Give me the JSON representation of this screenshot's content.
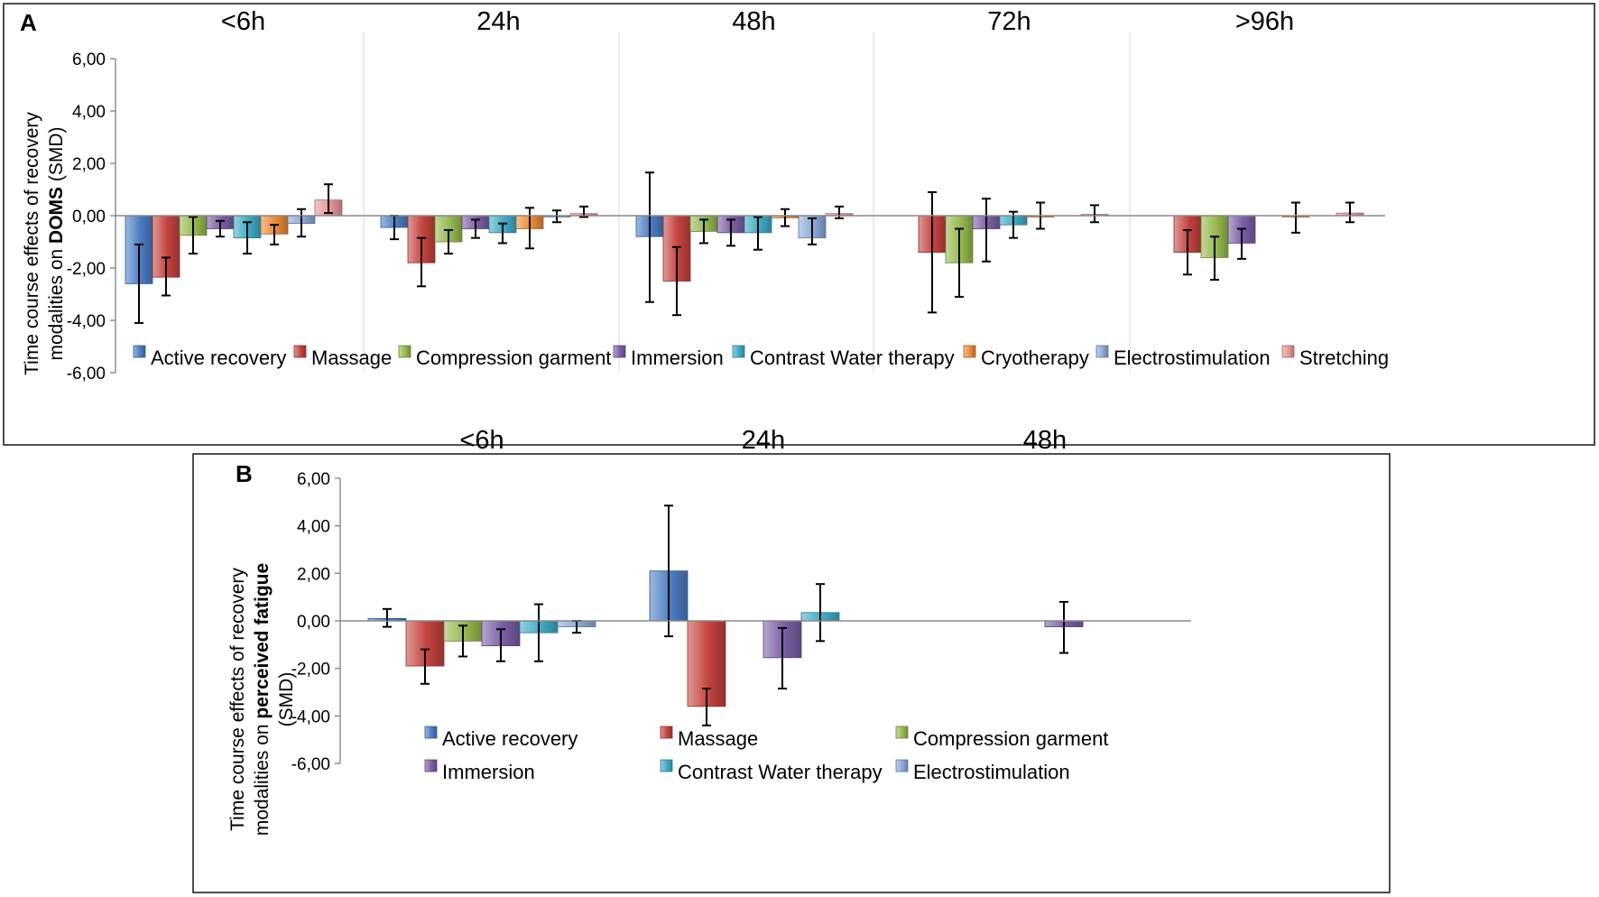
{
  "colors": {
    "Active recovery": "#4a7dc4",
    "Massage": "#c4433f",
    "Compression garment": "#96b94f",
    "Immersion": "#7b5ea5",
    "Contrast Water therapy": "#3eacc6",
    "Cryotherapy": "#eb8a36",
    "Electrostimulation": "#8ca9d8",
    "Stretching": "#e59795"
  },
  "chart_data": [
    {
      "type": "bar",
      "panel_label": "A",
      "ylabel_line1": "Time course effects of recovery",
      "ylabel_prefix": "modalities on ",
      "ylabel_bold": "DOMS",
      "ylabel_suffix": " (SMD)",
      "ylim": [
        -6,
        6
      ],
      "yticks": [
        "6,00",
        "4,00",
        "2,00",
        "0,00",
        "-2,00",
        "-4,00",
        "-6,00"
      ],
      "categories": [
        "<6h",
        "24h",
        "48h",
        "72h",
        ">96h"
      ],
      "series": [
        {
          "name": "Active recovery",
          "values": [
            -2.6,
            -0.45,
            -0.8,
            null,
            null
          ],
          "lo": [
            -4.1,
            -0.9,
            -3.3,
            null,
            null
          ],
          "hi": [
            -1.1,
            0.0,
            1.65,
            null,
            null
          ]
        },
        {
          "name": "Massage",
          "values": [
            -2.35,
            -1.8,
            -2.5,
            -1.4,
            -1.4
          ],
          "lo": [
            -3.05,
            -2.7,
            -3.8,
            -3.7,
            -2.25
          ],
          "hi": [
            -1.6,
            -0.85,
            -1.2,
            0.9,
            -0.55
          ]
        },
        {
          "name": "Compression garment",
          "values": [
            -0.75,
            -1.0,
            -0.6,
            -1.8,
            -1.6
          ],
          "lo": [
            -1.45,
            -1.45,
            -1.05,
            -3.1,
            -2.45
          ],
          "hi": [
            -0.05,
            -0.55,
            -0.15,
            -0.5,
            -0.8
          ]
        },
        {
          "name": "Immersion",
          "values": [
            -0.5,
            -0.5,
            -0.65,
            -0.5,
            -1.05
          ],
          "lo": [
            -0.8,
            -0.85,
            -1.15,
            -1.75,
            -1.65
          ],
          "hi": [
            -0.2,
            -0.15,
            -0.15,
            0.65,
            -0.5
          ]
        },
        {
          "name": "Contrast Water therapy",
          "values": [
            -0.85,
            -0.65,
            -0.65,
            -0.35,
            null
          ],
          "lo": [
            -1.45,
            -1.05,
            -1.3,
            -0.85,
            null
          ],
          "hi": [
            -0.25,
            -0.3,
            -0.05,
            0.15,
            null
          ]
        },
        {
          "name": "Cryotherapy",
          "values": [
            -0.7,
            -0.5,
            -0.08,
            0.0,
            -0.05
          ],
          "lo": [
            -1.1,
            -1.25,
            -0.4,
            -0.5,
            -0.65
          ],
          "hi": [
            -0.35,
            0.3,
            0.25,
            0.5,
            0.5
          ]
        },
        {
          "name": "Electrostimulation",
          "values": [
            -0.3,
            -0.05,
            -0.85,
            null,
            null
          ],
          "lo": [
            -0.8,
            -0.25,
            -1.1,
            null,
            null
          ],
          "hi": [
            0.25,
            0.2,
            -0.1,
            null,
            null
          ]
        },
        {
          "name": "Stretching",
          "values": [
            0.6,
            0.08,
            0.08,
            0.05,
            0.1
          ],
          "lo": [
            0.1,
            -0.05,
            -0.1,
            -0.25,
            -0.25
          ],
          "hi": [
            1.2,
            0.35,
            0.35,
            0.4,
            0.5
          ]
        }
      ]
    },
    {
      "type": "bar",
      "panel_label": "B",
      "ylabel_line1": "Time course effects of recovery",
      "ylabel_prefix": "modalities on ",
      "ylabel_bold": "perceived fatigue",
      "ylabel_suffix": "",
      "ylabel_line3": "(SMD)",
      "ylim": [
        -6,
        6
      ],
      "yticks": [
        "6,00",
        "4,00",
        "2,00",
        "0,00",
        "-2,00",
        "-4,00",
        "-6,00"
      ],
      "categories": [
        "<6h",
        "24h",
        "48h"
      ],
      "series": [
        {
          "name": "Active recovery",
          "values": [
            0.1,
            2.1,
            null
          ],
          "lo": [
            -0.25,
            -0.65,
            null
          ],
          "hi": [
            0.5,
            4.85,
            null
          ]
        },
        {
          "name": "Massage",
          "values": [
            -1.9,
            -3.6,
            null
          ],
          "lo": [
            -2.65,
            -4.4,
            null
          ],
          "hi": [
            -1.2,
            -2.85,
            null
          ]
        },
        {
          "name": "Compression garment",
          "values": [
            -0.85,
            null,
            null
          ],
          "lo": [
            -1.5,
            null,
            null
          ],
          "hi": [
            -0.2,
            null,
            null
          ]
        },
        {
          "name": "Immersion",
          "values": [
            -1.05,
            -1.55,
            -0.25
          ],
          "lo": [
            -1.7,
            -2.85,
            -1.35
          ],
          "hi": [
            -0.35,
            -0.3,
            0.8
          ]
        },
        {
          "name": "Contrast Water therapy",
          "values": [
            -0.5,
            0.35,
            null
          ],
          "lo": [
            -1.7,
            -0.85,
            null
          ],
          "hi": [
            0.7,
            1.55,
            null
          ]
        },
        {
          "name": "Electrostimulation",
          "values": [
            -0.25,
            null,
            null
          ],
          "lo": [
            -0.5,
            null,
            null
          ],
          "hi": [
            0.0,
            null,
            null
          ]
        }
      ]
    }
  ]
}
